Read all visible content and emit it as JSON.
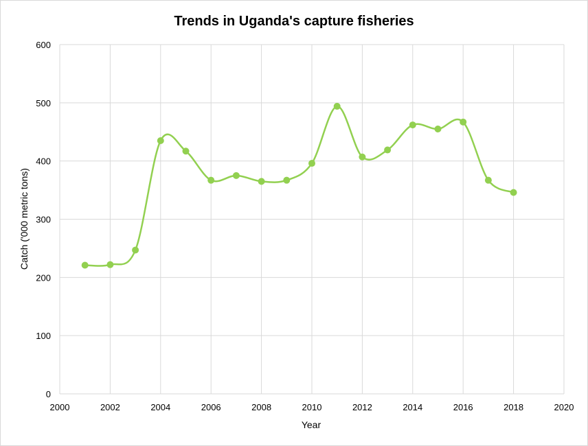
{
  "chart_data": {
    "type": "scatter",
    "title": "Trends in Uganda's capture fisheries",
    "xlabel": "Year",
    "ylabel": "Catch ('000 metric tons)",
    "xlim": [
      2000,
      2020
    ],
    "ylim": [
      0,
      600
    ],
    "x_ticks": [
      2000,
      2002,
      2004,
      2006,
      2008,
      2010,
      2012,
      2014,
      2016,
      2018,
      2020
    ],
    "y_ticks": [
      0,
      100,
      200,
      300,
      400,
      500,
      600
    ],
    "grid": true,
    "legend": "none",
    "smoothed_line": true,
    "color": "#92d050",
    "series": [
      {
        "x": [
          2001,
          2002,
          2003,
          2004,
          2005,
          2006,
          2007,
          2008,
          2009,
          2010,
          2011,
          2012,
          2013,
          2014,
          2015,
          2016,
          2017,
          2018
        ],
        "values": [
          221,
          222,
          247,
          435,
          417,
          367,
          375,
          365,
          367,
          396,
          494,
          407,
          419,
          462,
          455,
          467,
          367,
          346
        ]
      }
    ]
  }
}
